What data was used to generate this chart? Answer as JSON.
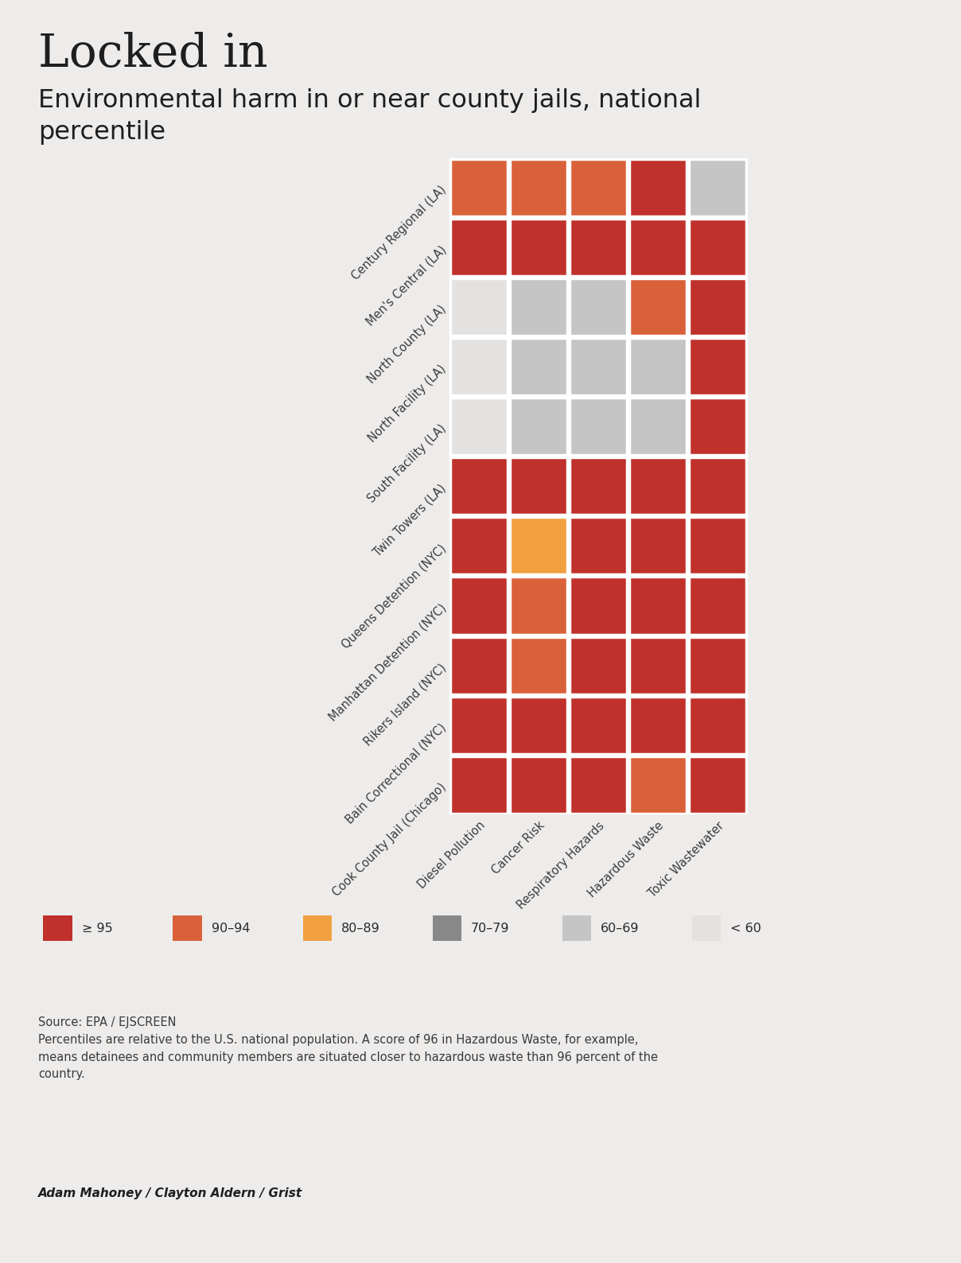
{
  "title": "Locked in",
  "subtitle": "Environmental harm in or near county jails, national\npercentile",
  "rows": [
    "Century Regional (LA)",
    "Men's Central (LA)",
    "North County (LA)",
    "North Facility (LA)",
    "South Facility (LA)",
    "Twin Towers (LA)",
    "Queens Detention (NYC)",
    "Manhattan Detention (NYC)",
    "Rikers Island (NYC)",
    "Bain Correctional (NYC)",
    "Cook County Jail (Chicago)"
  ],
  "columns": [
    "Diesel Pollution",
    "Cancer Risk",
    "Respiratory Hazards",
    "Hazardous Waste",
    "Toxic Wastewater"
  ],
  "heatmap": [
    [
      2,
      2,
      2,
      1,
      5
    ],
    [
      1,
      1,
      1,
      1,
      1
    ],
    [
      6,
      5,
      5,
      2,
      1
    ],
    [
      6,
      5,
      5,
      5,
      1
    ],
    [
      6,
      5,
      5,
      5,
      1
    ],
    [
      1,
      1,
      1,
      1,
      1
    ],
    [
      1,
      3,
      1,
      1,
      1
    ],
    [
      1,
      2,
      1,
      1,
      1
    ],
    [
      1,
      2,
      1,
      1,
      1
    ],
    [
      1,
      1,
      1,
      1,
      1
    ],
    [
      1,
      1,
      1,
      2,
      1
    ]
  ],
  "color_map": {
    "1": "#c0312b",
    "2": "#d9613a",
    "3": "#f0a040",
    "4": "#888888",
    "5": "#c5c5c5",
    "6": "#e4e2e0"
  },
  "background_color": "#eeeceb",
  "legend_labels": [
    "≥ 95",
    "90–94",
    "80–89",
    "70–79",
    "60–69",
    "< 60"
  ],
  "legend_colors": [
    "#c0312b",
    "#d9613a",
    "#f0a040",
    "#888888",
    "#c5c5c5",
    "#e4e2e0"
  ],
  "source_text": "Source: EPA / EJSCREEN\nPercentiles are relative to the U.S. national population. A score of 96 in Hazardous Waste, for example,\nmeans detainees and community members are situated closer to hazardous waste than 96 percent of the\ncountry.",
  "author_text": "Adam Mahoney / Clayton Aldern / Grist"
}
